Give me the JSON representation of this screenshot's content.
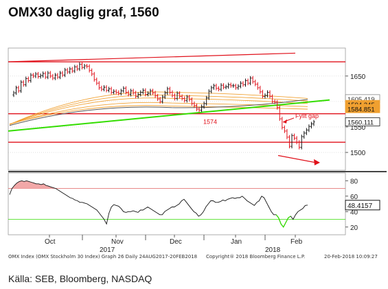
{
  "title": "OMX30 daglig graf, 1560",
  "source": "Källa: SEB, Bloomberg, NASDAQ",
  "footer": {
    "left": "OMX Index (OMX Stockholm 30 Index) Graph 26  Daily 24AUG2017-20FEB2018",
    "middle": "Copyright® 2018 Bloomberg Finance L.P.",
    "right": "20-Feb-2018 10:09:27"
  },
  "colors": {
    "price_up": "#111111",
    "price_down": "#e0101a",
    "support_resistance": "#e0101a",
    "trendline": "#33dd00",
    "ma_bands": "#f0a030",
    "ma_dark": "#555555",
    "rsi_line": "#111111",
    "rsi_overbought": "#e06060",
    "rsi_oversold": "#33dd00",
    "last_price_box": "#1a1a1a",
    "ma_box": "#f0a030"
  },
  "chart_data": [
    {
      "type": "line",
      "panel": "price",
      "title": "",
      "ylim": [
        1465,
        1705
      ],
      "y_ticks": [
        1500,
        1550,
        1600,
        1650
      ],
      "x_month_labels": [
        "Oct",
        "Nov",
        "Dec",
        "Jan",
        "Feb"
      ],
      "x_year_labels": [
        "2017",
        "2018"
      ],
      "x_date_range": [
        "2017-08-24",
        "2018-02-20"
      ],
      "series": [
        {
          "style": "ohlc-bars",
          "values": [
            1617,
            1627,
            1621,
            1638,
            1633,
            1645,
            1641,
            1652,
            1650,
            1654,
            1649,
            1651,
            1655,
            1648,
            1656,
            1650,
            1646,
            1652,
            1648,
            1656,
            1652,
            1662,
            1658,
            1664,
            1660,
            1668,
            1664,
            1673,
            1667,
            1670,
            1669,
            1661,
            1654,
            1643,
            1636,
            1627,
            1624,
            1628,
            1622,
            1625,
            1618,
            1620,
            1618,
            1616,
            1621,
            1626,
            1618,
            1614,
            1621,
            1617,
            1610,
            1614,
            1618,
            1622,
            1614,
            1616,
            1621,
            1617,
            1611,
            1605,
            1600,
            1609,
            1617,
            1625,
            1618,
            1612,
            1606,
            1616,
            1610,
            1606,
            1602,
            1609,
            1604,
            1596,
            1592,
            1585,
            1583,
            1590,
            1596,
            1607,
            1620,
            1627,
            1631,
            1626,
            1624,
            1632,
            1628,
            1629,
            1633,
            1631,
            1631,
            1627,
            1630,
            1636,
            1633,
            1641,
            1636,
            1646,
            1639,
            1634,
            1627,
            1619,
            1610,
            1612,
            1618,
            1610,
            1600,
            1599,
            1588,
            1566,
            1549,
            1542,
            1530,
            1512,
            1533,
            1528,
            1520,
            1510,
            1531,
            1538,
            1544,
            1551,
            1556,
            1560
          ]
        },
        {
          "name": "1605.419",
          "values_end": 1605.419
        },
        {
          "name": "1594.245",
          "values_end": 1594.245
        },
        {
          "name": "1584.851",
          "values_end": 1584.851
        },
        {
          "name": "1560.111",
          "values_end": 1560.111
        }
      ],
      "ma_bands": [
        {
          "start": 1555,
          "mid": 1618,
          "end": 1606
        },
        {
          "start": 1555,
          "mid": 1612,
          "end": 1601
        },
        {
          "start": 1555,
          "mid": 1606,
          "end": 1596
        },
        {
          "start": 1555,
          "mid": 1597,
          "end": 1590
        },
        {
          "start": 1556,
          "mid": 1591,
          "end": 1585
        },
        {
          "start": 1553,
          "mid": 1588,
          "end": 1604,
          "dark": true
        }
      ],
      "horizontal_lines": [
        1678,
        1576,
        1520
      ],
      "upper_channel": {
        "start": 1678,
        "end": 1695
      },
      "uptrend": {
        "start": 1542,
        "end": 1603
      },
      "annotations": [
        "1574",
        "Fyllt gap"
      ],
      "price_labels": [
        "1605.419",
        "1594.245",
        "1584.851",
        "1560.111"
      ]
    },
    {
      "type": "line",
      "panel": "rsi",
      "ylim": [
        10,
        90
      ],
      "y_ticks": [
        20,
        40,
        60,
        80
      ],
      "overbought": 70,
      "oversold": 30,
      "last_value_label": "48.4157",
      "series": [
        {
          "values": [
            62,
            70,
            74,
            77,
            79,
            80,
            79,
            80,
            79,
            78,
            77,
            76,
            76,
            75,
            76,
            74,
            73,
            72,
            71,
            70,
            68,
            66,
            64,
            62,
            60,
            58,
            57,
            55,
            54,
            52,
            52,
            51,
            50,
            48,
            46,
            44,
            42,
            38,
            34,
            30,
            24,
            38,
            46,
            49,
            48,
            47,
            44,
            40,
            39,
            40,
            40,
            41,
            40,
            39,
            42,
            42,
            44,
            46,
            44,
            42,
            40,
            38,
            36,
            36,
            40,
            42,
            44,
            46,
            46,
            48,
            50,
            54,
            56,
            52,
            48,
            44,
            40,
            38,
            34,
            36,
            40,
            46,
            50,
            54,
            54,
            52,
            52,
            53,
            55,
            54,
            56,
            57,
            58,
            57,
            58,
            58,
            60,
            57,
            54,
            52,
            50,
            48,
            52,
            54,
            60,
            58,
            52,
            46,
            40,
            36,
            36,
            32,
            24,
            20,
            26,
            32,
            34,
            30,
            36,
            40,
            42,
            44,
            48,
            48.4157
          ]
        }
      ]
    }
  ]
}
